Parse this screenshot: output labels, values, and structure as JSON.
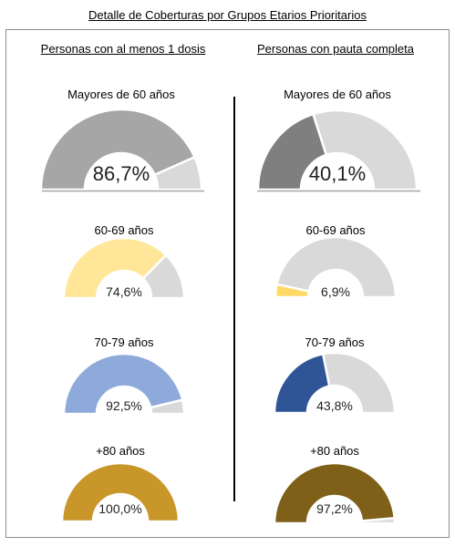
{
  "title": "Detalle de Coberturas por Grupos Etarios Prioritarios",
  "columns": [
    {
      "heading": "Personas con al menos 1 dosis"
    },
    {
      "heading": "Personas con pauta completa"
    }
  ],
  "chart_data": [
    {
      "type": "pie",
      "variant": "half-donut",
      "title": "Mayores de 60 años",
      "value": 86.7,
      "label": "86,7%",
      "color": "#a6a6a6",
      "rest_color": "#d9d9d9"
    },
    {
      "type": "pie",
      "variant": "half-donut",
      "title": "60-69 años",
      "value": 74.6,
      "label": "74,6%",
      "color": "#ffe699",
      "rest_color": "#d9d9d9"
    },
    {
      "type": "pie",
      "variant": "half-donut",
      "title": "70-79 años",
      "value": 92.5,
      "label": "92,5%",
      "color": "#8eaadb",
      "rest_color": "#d9d9d9"
    },
    {
      "type": "pie",
      "variant": "half-donut",
      "title": "+80 años",
      "value": 100.0,
      "label": "100,0%",
      "color": "#c9962a",
      "rest_color": "#d9d9d9"
    },
    {
      "type": "pie",
      "variant": "half-donut",
      "title": "Mayores de 60 años",
      "value": 40.1,
      "label": "40,1%",
      "color": "#7f7f7f",
      "rest_color": "#d9d9d9"
    },
    {
      "type": "pie",
      "variant": "half-donut",
      "title": "60-69 años",
      "value": 6.9,
      "label": "6,9%",
      "color": "#ffd966",
      "rest_color": "#d9d9d9"
    },
    {
      "type": "pie",
      "variant": "half-donut",
      "title": "70-79 años",
      "value": 43.8,
      "label": "43,8%",
      "color": "#2f5597",
      "rest_color": "#d9d9d9"
    },
    {
      "type": "pie",
      "variant": "half-donut",
      "title": "+80 años",
      "value": 97.2,
      "label": "97,2%",
      "color": "#7f6019",
      "rest_color": "#d9d9d9"
    }
  ]
}
